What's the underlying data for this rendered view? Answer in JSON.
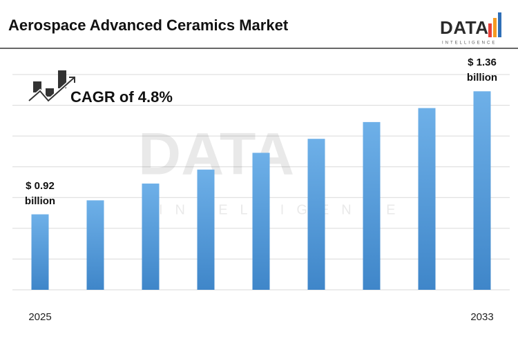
{
  "chart_data": {
    "type": "bar",
    "title": "Aerospace Advanced Ceramics Market",
    "annotation": "CAGR of 4.8%",
    "categories": [
      "2025",
      null,
      null,
      null,
      null,
      null,
      null,
      null,
      "2033"
    ],
    "values": [
      0.92,
      0.97,
      1.03,
      1.08,
      1.14,
      1.19,
      1.25,
      1.3,
      1.36
    ],
    "value_labels": [
      "$ 0.92 billion",
      null,
      null,
      null,
      null,
      null,
      null,
      null,
      "$ 1.36 billion"
    ],
    "color": "#4a8fd3",
    "ylim": [
      0.65,
      1.42
    ],
    "yticks": [
      0.65,
      0.76,
      0.87,
      0.98,
      1.09,
      1.2,
      1.31,
      1.42
    ],
    "grid": true
  },
  "logo": {
    "text": "DATA",
    "subtext": "INTELLIGENCE"
  }
}
